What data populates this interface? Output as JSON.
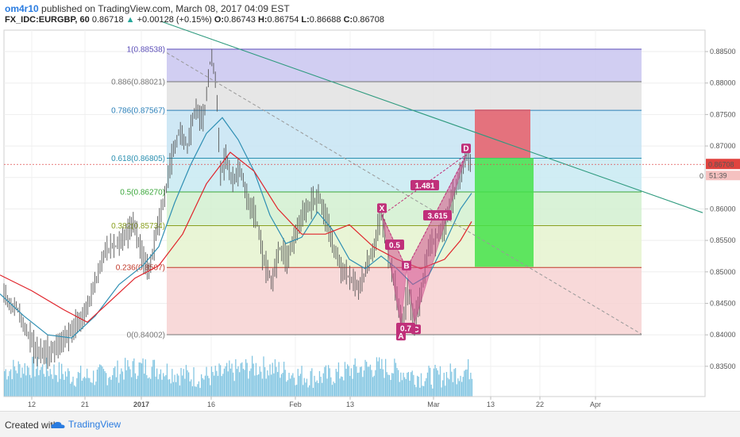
{
  "header": {
    "author": "om4r10",
    "published_text": "published on TradingView.com, March 08, 2017 04:09 EST",
    "symbol": "FX_IDC:EURGBP, 60",
    "last": "0.86718",
    "change": "+0.00128 (+0.15%)",
    "o_label": "O:",
    "o_value": "0.86743",
    "h_label": "H:",
    "h_value": "0.86754",
    "l_label": "L:",
    "l_value": "0.86688",
    "c_label": "C:",
    "c_value": "0.86708"
  },
  "footer": {
    "created_with": "Created with",
    "brand": "TradingView"
  },
  "colors": {
    "candle": "#555555",
    "ma_blue": "#2f8fb3",
    "ma_red": "#e0242b",
    "trend": "#2e9a7e",
    "pattern": "#c0307a",
    "volume": "#5bb3d8",
    "long_green": "#45e24a",
    "long_red": "#e9545f"
  },
  "chart_data": {
    "type": "candlestick",
    "symbol": "FX_IDC:EURGBP",
    "timeframe": "60",
    "ylim": [
      0.8295,
      0.8865
    ],
    "y_ticks": [
      "0.88500",
      "0.88000",
      "0.87500",
      "0.87000",
      "0.86000",
      "0.85500",
      "0.85000",
      "0.84500",
      "0.84000",
      "0.83500"
    ],
    "x_tick_labels": [
      "12",
      "21",
      "2017",
      "16",
      "Feb",
      "13",
      "Mar",
      "13",
      "22",
      "Apr"
    ],
    "current_price_label": "0.86708",
    "countdown_label": "51:39",
    "axis_marker_label": "0",
    "price_path": [
      [
        0,
        0.848
      ],
      [
        12,
        0.845
      ],
      [
        22,
        0.844
      ],
      [
        32,
        0.841
      ],
      [
        45,
        0.8375
      ],
      [
        62,
        0.837
      ],
      [
        75,
        0.8385
      ],
      [
        90,
        0.8405
      ],
      [
        105,
        0.843
      ],
      [
        120,
        0.848
      ],
      [
        132,
        0.8535
      ],
      [
        145,
        0.854
      ],
      [
        158,
        0.8555
      ],
      [
        168,
        0.858
      ],
      [
        178,
        0.853
      ],
      [
        188,
        0.85
      ],
      [
        196,
        0.856
      ],
      [
        206,
        0.861
      ],
      [
        216,
        0.868
      ],
      [
        226,
        0.8725
      ],
      [
        236,
        0.87
      ],
      [
        246,
        0.876
      ],
      [
        256,
        0.874
      ],
      [
        266,
        0.8845
      ],
      [
        272,
        0.88
      ],
      [
        278,
        0.865
      ],
      [
        285,
        0.869
      ],
      [
        292,
        0.864
      ],
      [
        302,
        0.8665
      ],
      [
        312,
        0.861
      ],
      [
        322,
        0.859
      ],
      [
        332,
        0.852
      ],
      [
        342,
        0.848
      ],
      [
        352,
        0.854
      ],
      [
        362,
        0.852
      ],
      [
        372,
        0.856
      ],
      [
        382,
        0.859
      ],
      [
        392,
        0.861
      ],
      [
        402,
        0.862
      ],
      [
        412,
        0.858
      ],
      [
        422,
        0.853
      ],
      [
        432,
        0.85
      ],
      [
        442,
        0.849
      ],
      [
        452,
        0.847
      ],
      [
        462,
        0.851
      ],
      [
        472,
        0.854
      ],
      [
        480,
        0.8595
      ],
      [
        490,
        0.852
      ],
      [
        498,
        0.8475
      ],
      [
        506,
        0.8415
      ],
      [
        514,
        0.847
      ],
      [
        522,
        0.842
      ],
      [
        530,
        0.846
      ],
      [
        540,
        0.854
      ],
      [
        550,
        0.8555
      ],
      [
        560,
        0.8575
      ],
      [
        570,
        0.862
      ],
      [
        580,
        0.865
      ],
      [
        588,
        0.8685
      ],
      [
        594,
        0.8671
      ]
    ],
    "moving_averages": [
      {
        "name": "MA fast",
        "color": "#2f8fb3",
        "values": [
          [
            0,
            0.8465
          ],
          [
            30,
            0.843
          ],
          [
            60,
            0.84
          ],
          [
            90,
            0.8395
          ],
          [
            120,
            0.843
          ],
          [
            150,
            0.848
          ],
          [
            180,
            0.851
          ],
          [
            200,
            0.854
          ],
          [
            220,
            0.861
          ],
          [
            240,
            0.867
          ],
          [
            260,
            0.872
          ],
          [
            280,
            0.8745
          ],
          [
            300,
            0.871
          ],
          [
            320,
            0.866
          ],
          [
            340,
            0.859
          ],
          [
            360,
            0.8545
          ],
          [
            380,
            0.8555
          ],
          [
            400,
            0.8595
          ],
          [
            420,
            0.8565
          ],
          [
            440,
            0.852
          ],
          [
            460,
            0.8505
          ],
          [
            480,
            0.8525
          ],
          [
            500,
            0.8505
          ],
          [
            520,
            0.848
          ],
          [
            540,
            0.8495
          ],
          [
            560,
            0.8545
          ],
          [
            580,
            0.86
          ],
          [
            594,
            0.8625
          ]
        ]
      },
      {
        "name": "MA slow",
        "color": "#e0242b",
        "values": [
          [
            0,
            0.8495
          ],
          [
            40,
            0.847
          ],
          [
            80,
            0.844
          ],
          [
            110,
            0.842
          ],
          [
            140,
            0.8455
          ],
          [
            170,
            0.849
          ],
          [
            200,
            0.851
          ],
          [
            230,
            0.856
          ],
          [
            260,
            0.864
          ],
          [
            290,
            0.869
          ],
          [
            320,
            0.866
          ],
          [
            350,
            0.86
          ],
          [
            380,
            0.856
          ],
          [
            410,
            0.856
          ],
          [
            440,
            0.8575
          ],
          [
            470,
            0.854
          ],
          [
            500,
            0.852
          ],
          [
            530,
            0.8505
          ],
          [
            560,
            0.852
          ],
          [
            580,
            0.855
          ],
          [
            594,
            0.858
          ]
        ]
      }
    ],
    "fibonacci": [
      {
        "ratio": "1",
        "price": 0.88538,
        "label": "1(0.88538)",
        "color": "#5c4fb8"
      },
      {
        "ratio": "0.886",
        "price": 0.88021,
        "label": "0.886(0.88021)",
        "color": "#777777"
      },
      {
        "ratio": "0.786",
        "price": 0.87567,
        "label": "0.786(0.87567)",
        "color": "#2a7fb8"
      },
      {
        "ratio": "0.618",
        "price": 0.86805,
        "label": "0.618(0.86805)",
        "color": "#2a8fb0"
      },
      {
        "ratio": "0.5",
        "price": 0.8627,
        "label": "0.5(0.86270)",
        "color": "#3aa63a"
      },
      {
        "ratio": "0.382",
        "price": 0.85734,
        "label": "0.382(0.85734)",
        "color": "#8aa020"
      },
      {
        "ratio": "0.236",
        "price": 0.8507,
        "label": "0.236(0.8507)",
        "color": "#c0392b"
      },
      {
        "ratio": "0",
        "price": 0.84002,
        "label": "0(0.84002)",
        "color": "#777777"
      }
    ],
    "harmonic_pattern": {
      "points": [
        {
          "name": "X",
          "x": 481,
          "price": 0.859
        },
        {
          "name": "A",
          "x": 505,
          "price": 0.8415
        },
        {
          "name": "B",
          "x": 512,
          "price": 0.8505
        },
        {
          "name": "C",
          "x": 522,
          "price": 0.842
        },
        {
          "name": "D",
          "x": 587,
          "price": 0.8686
        }
      ],
      "ratios": [
        {
          "label": "0.5"
        },
        {
          "label": "0.7"
        },
        {
          "label": "1.481"
        },
        {
          "label": "3.615"
        }
      ]
    },
    "trend_line": {
      "x1": 205,
      "y1": 0.8897,
      "x2": 885,
      "y2": 0.8594
    },
    "dashed_line": {
      "x1": 210,
      "y1": 0.8848,
      "x2": 808,
      "y2": 0.8401
    },
    "long_position": {
      "stop_top": 0.8758,
      "entry": 0.8681,
      "target": 0.8508
    }
  }
}
